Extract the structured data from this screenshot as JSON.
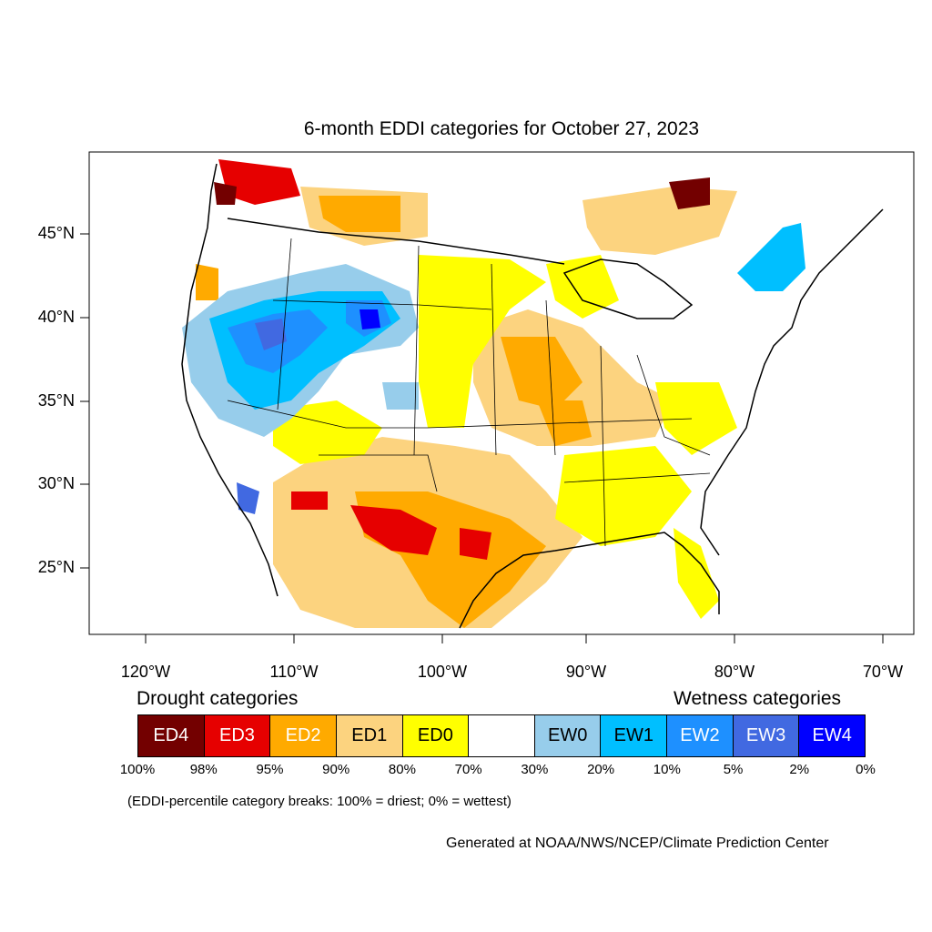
{
  "title": "6-month EDDI categories for October 27, 2023",
  "lat_labels": [
    "45°N",
    "40°N",
    "35°N",
    "30°N",
    "25°N"
  ],
  "lon_labels": [
    "120°W",
    "110°W",
    "100°W",
    "90°W",
    "80°W",
    "70°W"
  ],
  "legend": {
    "drought_heading": "Drought categories",
    "wetness_heading": "Wetness categories",
    "categories": [
      {
        "label": "ED4",
        "color": "#730000",
        "text_color": "#ffffff"
      },
      {
        "label": "ED3",
        "color": "#e60000",
        "text_color": "#ffffff"
      },
      {
        "label": "ED2",
        "color": "#ffaa00",
        "text_color": "#ffffff"
      },
      {
        "label": "ED1",
        "color": "#fcd37f",
        "text_color": "#000000"
      },
      {
        "label": "ED0",
        "color": "#ffff00",
        "text_color": "#000000"
      },
      {
        "label": "",
        "color": "#ffffff",
        "text_color": "#000000"
      },
      {
        "label": "EW0",
        "color": "#97cdeb",
        "text_color": "#000000"
      },
      {
        "label": "EW1",
        "color": "#00bfff",
        "text_color": "#000000"
      },
      {
        "label": "EW2",
        "color": "#1e90ff",
        "text_color": "#ffffff"
      },
      {
        "label": "EW3",
        "color": "#4169e1",
        "text_color": "#ffffff"
      },
      {
        "label": "EW4",
        "color": "#0000ff",
        "text_color": "#ffffff"
      }
    ],
    "percent_breaks": [
      "100%",
      "98%",
      "95%",
      "90%",
      "80%",
      "70%",
      "30%",
      "20%",
      "10%",
      "5%",
      "2%",
      "0%"
    ]
  },
  "note": "(EDDI-percentile category breaks: 100% = driest; 0% = wettest)",
  "credit": "Generated at NOAA/NWS/NCEP/Climate Prediction Center"
}
